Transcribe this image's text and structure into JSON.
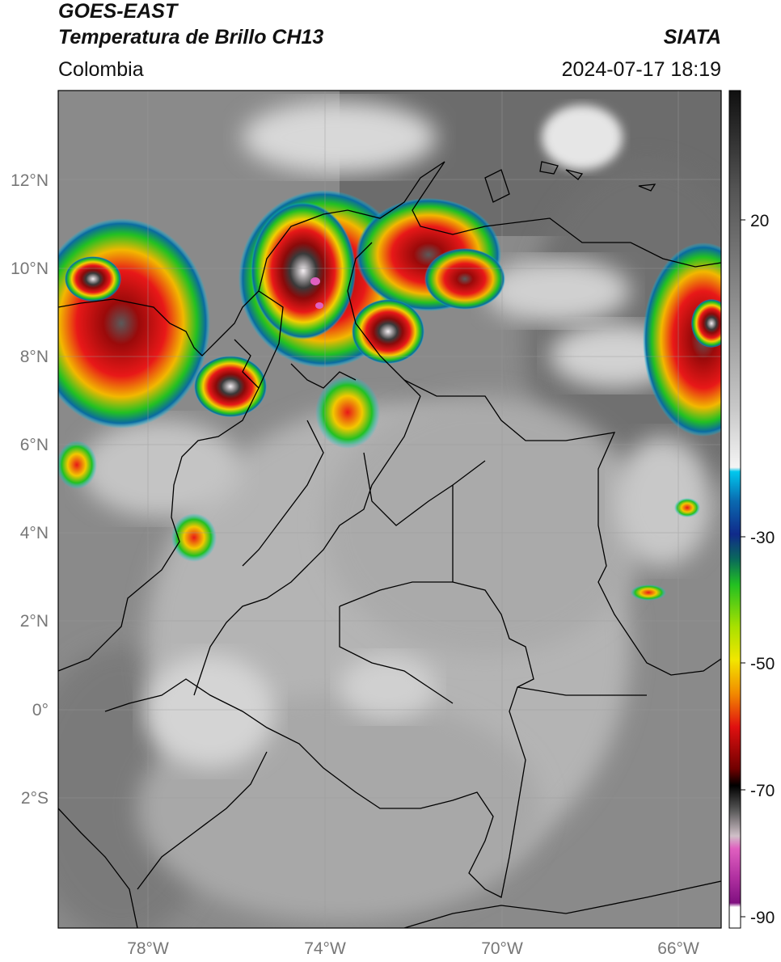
{
  "header": {
    "satellite": "GOES-EAST",
    "product": "Temperatura de Brillo CH13",
    "region": "Colombia",
    "agency": "SIATA",
    "datetime": "2024-07-17 18:19"
  },
  "map": {
    "lat_labels": [
      "12°N",
      "10°N",
      "8°N",
      "6°N",
      "4°N",
      "2°N",
      "0°",
      "2°S"
    ],
    "lon_labels": [
      "78°W",
      "74°W",
      "70°W",
      "66°W"
    ]
  },
  "colorbar": {
    "tick_labels": [
      "20",
      "-30",
      "-50",
      "-70",
      "-90"
    ],
    "colors": {
      "warm_gray_top": "#1a1a1a",
      "light_gray": "#f0f0f0",
      "cyan": "#00c8ee",
      "dark_blue": "#102a8a",
      "green": "#22c022",
      "yellow": "#f2e600",
      "red": "#e01010",
      "black": "#000000",
      "magenta": "#e060c0",
      "purple": "#801080"
    }
  }
}
